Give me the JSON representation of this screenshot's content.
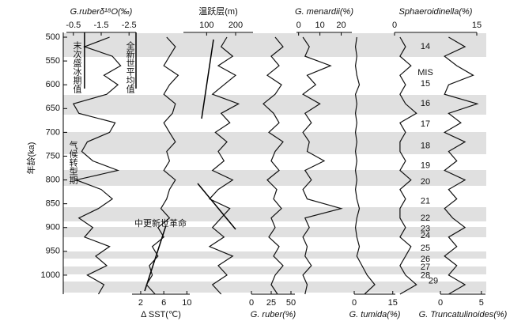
{
  "chart_data": {
    "type": "line",
    "ylabel": "年龄(ka)",
    "ylim": [
      490,
      1040
    ],
    "yticks": [
      500,
      550,
      600,
      650,
      700,
      750,
      800,
      850,
      900,
      950,
      1000
    ],
    "y": [
      500,
      520,
      540,
      560,
      580,
      600,
      620,
      640,
      660,
      680,
      700,
      720,
      740,
      760,
      780,
      800,
      820,
      840,
      860,
      880,
      900,
      920,
      940,
      960,
      980,
      1000,
      1020,
      1040
    ],
    "series": [
      {
        "name": "G.ruberδ¹⁸O(‰)",
        "color": "#111111",
        "axis_side": "top",
        "xlim": [
          -0.25,
          -2.75
        ],
        "xticks": [
          -0.5,
          -1.5,
          -2.5
        ],
        "values": [
          -1.8,
          -0.9,
          -1.9,
          -2.2,
          -1.6,
          -2.1,
          -1.7,
          -0.5,
          -0.7,
          -2.0,
          -1.8,
          -1.0,
          -0.8,
          -1.2,
          -2.1,
          -0.6,
          -1.5,
          -1.9,
          -1.4,
          -0.7,
          -1.2,
          -0.9,
          -1.8,
          -1.3,
          -1.7,
          -1.0,
          -1.6,
          -1.4
        ]
      },
      {
        "name": "Δ SST(℃)",
        "color": "#111111",
        "axis_side": "bottom",
        "xlim": [
          0.5,
          10.5
        ],
        "xticks": [
          2,
          6,
          10
        ],
        "values": [
          6.5,
          8,
          7,
          6,
          8.5,
          7,
          6,
          8,
          7.5,
          6,
          7,
          8,
          6.5,
          7,
          6,
          8,
          7,
          6.5,
          5.5,
          7,
          5,
          6,
          4,
          5,
          3.5,
          4,
          3,
          4.5
        ]
      },
      {
        "name": "温跃层(m)",
        "color": "#111111",
        "axis_side": "top",
        "xlim": [
          20,
          260
        ],
        "xticks": [
          100,
          200
        ],
        "values": [
          170,
          150,
          190,
          140,
          200,
          160,
          120,
          210,
          150,
          180,
          130,
          170,
          140,
          160,
          120,
          190,
          140,
          110,
          180,
          150,
          120,
          160,
          110,
          190,
          140,
          170,
          120,
          150
        ]
      },
      {
        "name": "G. ruber(%)",
        "color": "#111111",
        "axis_side": "bottom",
        "xlim": [
          0,
          55
        ],
        "xticks": [
          0,
          25,
          50
        ],
        "values": [
          30,
          40,
          25,
          35,
          20,
          38,
          30,
          15,
          28,
          35,
          22,
          40,
          30,
          25,
          35,
          20,
          32,
          28,
          38,
          25,
          30,
          22,
          35,
          28,
          40,
          30,
          25,
          33
        ]
      },
      {
        "name": "G. menardii(%)",
        "color": "#111111",
        "axis_side": "top",
        "xlim": [
          -1,
          25
        ],
        "xticks": [
          0,
          10,
          20
        ],
        "values": [
          2,
          5,
          3,
          15,
          4,
          8,
          2,
          10,
          3,
          6,
          2,
          5,
          4,
          12,
          3,
          6,
          2,
          4,
          20,
          3,
          5,
          2,
          4,
          3,
          6,
          2,
          4,
          3
        ]
      },
      {
        "name": "G. tumida(%)",
        "color": "#111111",
        "axis_side": "bottom",
        "xlim": [
          0,
          16
        ],
        "xticks": [
          0,
          15
        ],
        "values": [
          1,
          0.5,
          1,
          0.5,
          1,
          2,
          0.5,
          1,
          0.5,
          1,
          0.5,
          1,
          0.5,
          1,
          0.5,
          1,
          0.5,
          1,
          2,
          1,
          0.5,
          1,
          2,
          1,
          3,
          5,
          8,
          4
        ]
      },
      {
        "name": "Sphaeroidinella(%)",
        "color": "#111111",
        "axis_side": "top",
        "xlim": [
          0,
          15
        ],
        "xticks": [
          0,
          15
        ],
        "values": [
          1,
          2,
          1,
          3,
          1,
          2,
          1,
          2,
          4,
          1,
          2,
          1,
          1,
          2,
          1,
          3,
          1,
          2,
          1,
          1,
          2,
          1,
          3,
          2,
          1,
          2,
          4,
          1
        ]
      },
      {
        "name": "G. Truncatulinoides(%)",
        "color": "#111111",
        "axis_side": "bottom",
        "xlim": [
          0,
          5.5
        ],
        "xticks": [
          0,
          5
        ],
        "values": [
          1,
          3,
          0.5,
          2,
          4,
          1,
          0.5,
          4.5,
          1,
          2.5,
          0.5,
          3,
          1,
          2,
          0.5,
          3,
          1,
          2,
          0.5,
          1.5,
          3,
          1,
          2,
          0.5,
          2,
          1,
          3,
          1
        ]
      }
    ],
    "reference_lines": [
      {
        "label": "末次盛冰期值",
        "value": -0.9
      },
      {
        "label": "全新世平均值",
        "value": -2.75
      }
    ],
    "annotations": [
      "气候转型期",
      "中更新世革命"
    ],
    "mis_label": "MIS",
    "mis": [
      {
        "label": "14",
        "age": 520
      },
      {
        "label": "15",
        "age": 598
      },
      {
        "label": "16",
        "age": 640
      },
      {
        "label": "17",
        "age": 683
      },
      {
        "label": "18",
        "age": 729
      },
      {
        "label": "19",
        "age": 770
      },
      {
        "label": "20",
        "age": 804
      },
      {
        "label": "21",
        "age": 845
      },
      {
        "label": "22",
        "age": 881
      },
      {
        "label": "23",
        "age": 903
      },
      {
        "label": "24",
        "age": 917
      },
      {
        "label": "25",
        "age": 944
      },
      {
        "label": "26",
        "age": 967
      },
      {
        "label": "27",
        "age": 984
      },
      {
        "label": "28",
        "age": 1001
      },
      {
        "label": "29",
        "age": 1013
      }
    ]
  }
}
